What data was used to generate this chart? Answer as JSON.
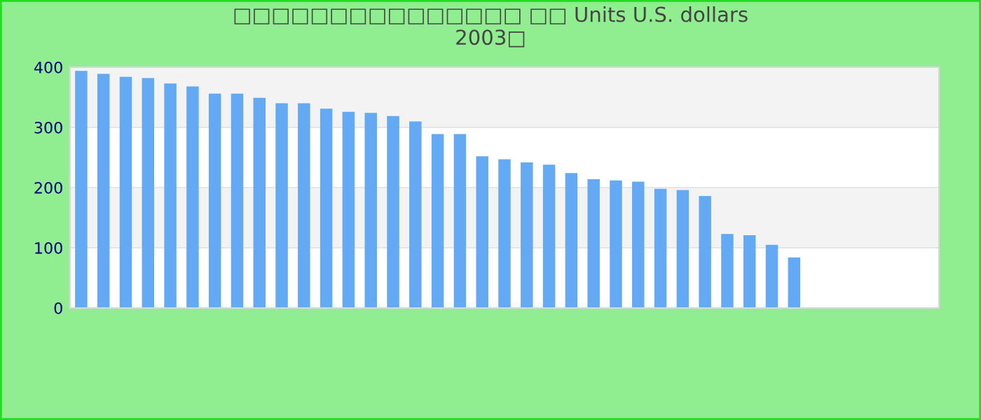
{
  "chart_data": {
    "type": "bar",
    "title": "□□□□□□□□□□□□□□□ □□ Units U.S. dollars\n2003□",
    "categories": [
      null,
      null,
      null,
      null,
      null,
      null,
      null,
      null,
      null,
      null,
      null,
      null,
      null,
      null,
      null,
      null,
      null,
      null,
      null,
      null,
      null,
      null,
      null,
      null,
      null,
      null,
      null,
      null,
      null,
      null,
      null,
      null,
      null,
      null,
      null,
      null,
      null,
      null,
      null
    ],
    "values": [
      394,
      389,
      384,
      382,
      373,
      368,
      356,
      356,
      349,
      340,
      340,
      331,
      326,
      324,
      319,
      310,
      289,
      289,
      252,
      247,
      242,
      238,
      224,
      214,
      212,
      210,
      198,
      196,
      186,
      123,
      121,
      105,
      84,
      null,
      null,
      null,
      null,
      null,
      null
    ],
    "color": "#63a9f3",
    "ylim": [
      0,
      400
    ],
    "yticks": [
      0,
      100,
      200,
      300,
      400
    ],
    "grid": "y",
    "tick_labels": "y"
  }
}
